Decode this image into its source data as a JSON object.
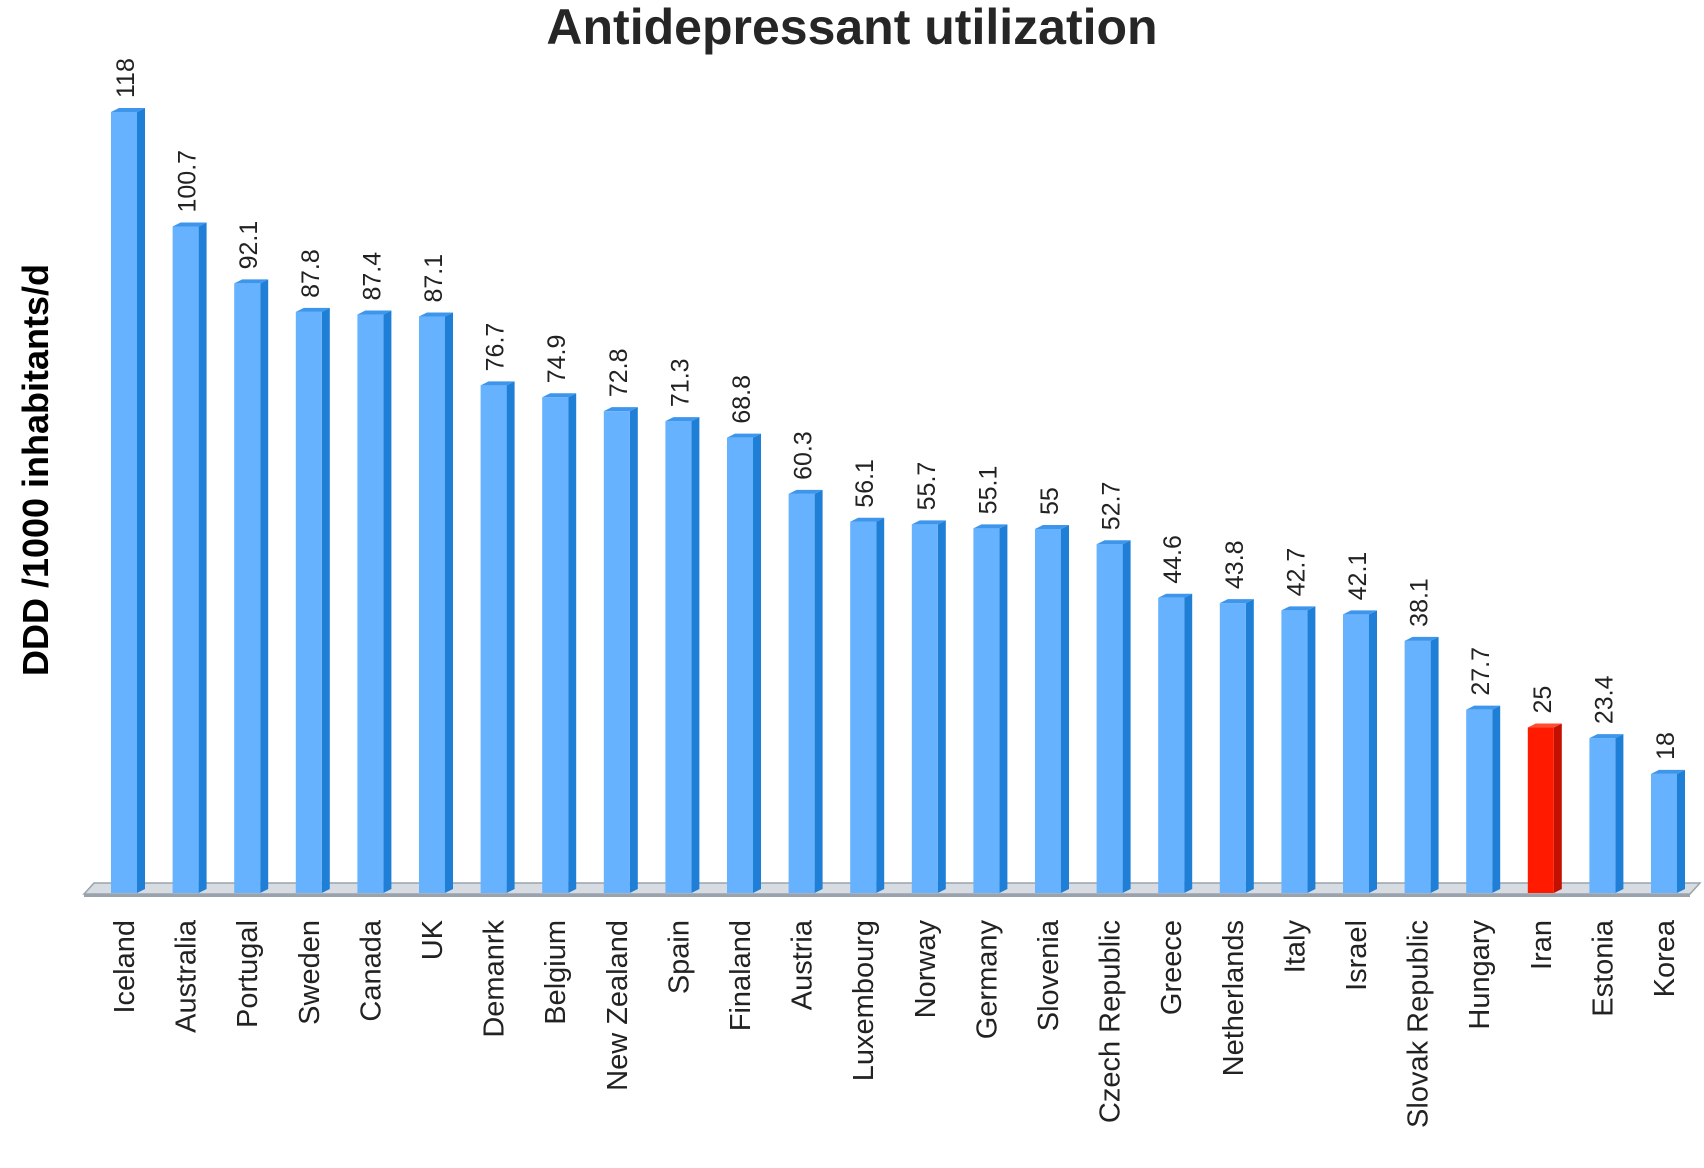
{
  "chart_data": {
    "type": "bar",
    "title": "Antidepressant utilization",
    "xlabel": "",
    "ylabel": "DDD /1000 inhabitants/d",
    "ylim": [
      0,
      118
    ],
    "grid": false,
    "legend": "none",
    "value_labels": true,
    "categories": [
      "Iceland",
      "Australia",
      "Portugal",
      "Sweden",
      "Canada",
      "UK",
      "Demanrk",
      "Belgium",
      "New Zealand",
      "Spain",
      "Finaland",
      "Austria",
      "Luxembourg",
      "Norway",
      "Germany",
      "Slovenia",
      "Czech Republic",
      "Greece",
      "Netherlands",
      "Italy",
      "Israel",
      "Slovak Republic",
      "Hungary",
      "Iran",
      "Estonia",
      "Korea"
    ],
    "values": [
      118,
      100.7,
      92.1,
      87.8,
      87.4,
      87.1,
      76.7,
      74.9,
      72.8,
      71.3,
      68.8,
      60.3,
      56.1,
      55.7,
      55.1,
      55,
      52.7,
      44.6,
      43.8,
      42.7,
      42.1,
      38.1,
      27.7,
      25,
      23.4,
      18
    ],
    "value_labels_text": [
      "118",
      "100.7",
      "92.1",
      "87.8",
      "87.4",
      "87.1",
      "76.7",
      "74.9",
      "72.8",
      "71.3",
      "68.8",
      "60.3",
      "56.1",
      "55.7",
      "55.1",
      "55",
      "52.7",
      "44.6",
      "43.8",
      "42.7",
      "42.1",
      "38.1",
      "27.7",
      "25",
      "23.4",
      "18"
    ],
    "highlight_category": "Iran",
    "colors": {
      "bar": "#66b2ff",
      "bar_side": "#1f7fd6",
      "bar_top": "#3d96ec",
      "highlight": "#ff1a00",
      "highlight_side": "#c41000",
      "highlight_top": "#ff4d33",
      "floor": "#d7dbe2",
      "floor_edge": "#9aa3ad"
    }
  }
}
